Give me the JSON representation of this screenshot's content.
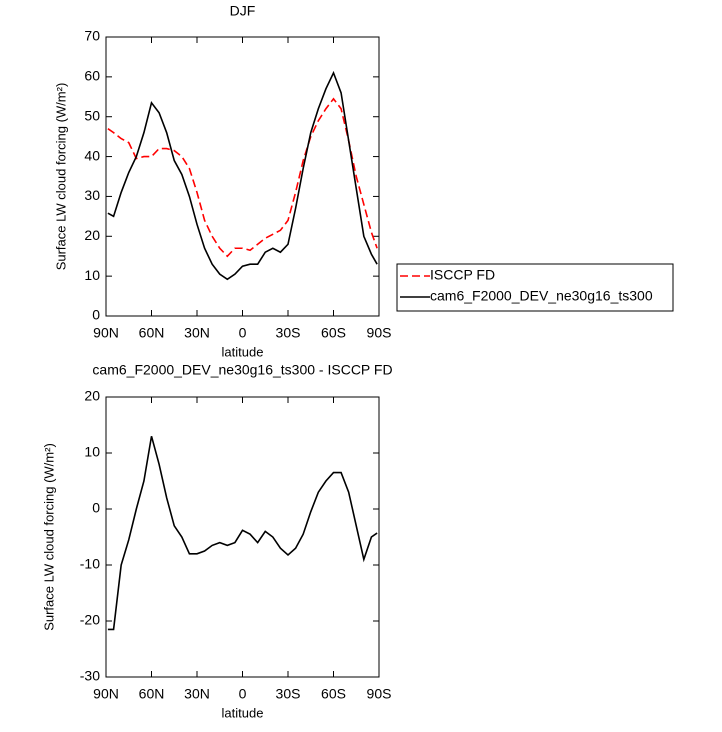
{
  "chart_data": [
    {
      "type": "line",
      "title": "DJF",
      "xlabel": "latitude",
      "ylabel": "Surface LW cloud forcing (W/m²)",
      "x": [
        88.75,
        85,
        80,
        75,
        70,
        65,
        60,
        55,
        50,
        45,
        40,
        35,
        30,
        25,
        20,
        15,
        10,
        5,
        0,
        -5,
        -10,
        -15,
        -20,
        -25,
        -30,
        -35,
        -40,
        -45,
        -50,
        -55,
        -60,
        -65,
        -70,
        -75,
        -80,
        -85,
        -88.75
      ],
      "xlim": [
        90,
        -90
      ],
      "xticks": [
        {
          "value": 90,
          "label": "90N"
        },
        {
          "value": 60,
          "label": "60N"
        },
        {
          "value": 30,
          "label": "30N"
        },
        0,
        {
          "value": -30,
          "label": "30S"
        },
        {
          "value": -60,
          "label": "60S"
        },
        {
          "value": -90,
          "label": "90S"
        }
      ],
      "ylim": [
        0,
        70
      ],
      "yticks": [
        0,
        10,
        20,
        30,
        40,
        50,
        60,
        70
      ],
      "legend_position": "right",
      "series": [
        {
          "name": "ISCCP FD",
          "color": "#ff0000",
          "dashed": true,
          "values": [
            47,
            46,
            44.5,
            43.5,
            39.5,
            40,
            40,
            42,
            42,
            41.5,
            40,
            37,
            31,
            24,
            20,
            17,
            15,
            17,
            17,
            16.5,
            18,
            19.5,
            20.5,
            21.5,
            24,
            31,
            39,
            45,
            49,
            52,
            54.5,
            52,
            44,
            35,
            28,
            21,
            17
          ]
        },
        {
          "name": "cam6_F2000_DEV_ne30g16_ts300",
          "color": "#000000",
          "dashed": false,
          "values": [
            25.8,
            25,
            31,
            36,
            40,
            46,
            53.5,
            51,
            46,
            39,
            35.5,
            30,
            23,
            17,
            13,
            10.5,
            9.2,
            10.5,
            12.5,
            13,
            13,
            16,
            17,
            16,
            18,
            27,
            37,
            46,
            52,
            57,
            61,
            56,
            44,
            32,
            20,
            15.5,
            13
          ]
        }
      ]
    },
    {
      "type": "line",
      "title": "cam6_F2000_DEV_ne30g16_ts300 - ISCCP FD",
      "xlabel": "latitude",
      "ylabel": "Surface LW cloud forcing (W/m²)",
      "x": [
        88.75,
        85,
        80,
        75,
        70,
        65,
        60,
        55,
        50,
        45,
        40,
        35,
        30,
        25,
        20,
        15,
        10,
        5,
        0,
        -5,
        -10,
        -15,
        -20,
        -25,
        -30,
        -35,
        -40,
        -45,
        -50,
        -55,
        -60,
        -65,
        -70,
        -75,
        -80,
        -85,
        -88.75
      ],
      "xlim": [
        90,
        -90
      ],
      "xticks": [
        {
          "value": 90,
          "label": "90N"
        },
        {
          "value": 60,
          "label": "60N"
        },
        {
          "value": 30,
          "label": "30N"
        },
        0,
        {
          "value": -30,
          "label": "30S"
        },
        {
          "value": -60,
          "label": "60S"
        },
        {
          "value": -90,
          "label": "90S"
        }
      ],
      "ylim": [
        -30,
        20
      ],
      "yticks": [
        -30,
        -20,
        -10,
        0,
        10,
        20
      ],
      "series": [
        {
          "color": "#000000",
          "dashed": false,
          "values": [
            -21.5,
            -21.5,
            -10,
            -5.5,
            0,
            5,
            13,
            8,
            2,
            -3,
            -5,
            -8,
            -8,
            -7.5,
            -6.5,
            -6,
            -6.5,
            -6,
            -3.8,
            -4.5,
            -6,
            -4,
            -5,
            -7,
            -8.2,
            -7,
            -4.5,
            -0.5,
            3,
            5,
            6.5,
            6.5,
            3,
            -3,
            -9,
            -5,
            -4.3
          ]
        }
      ]
    }
  ]
}
